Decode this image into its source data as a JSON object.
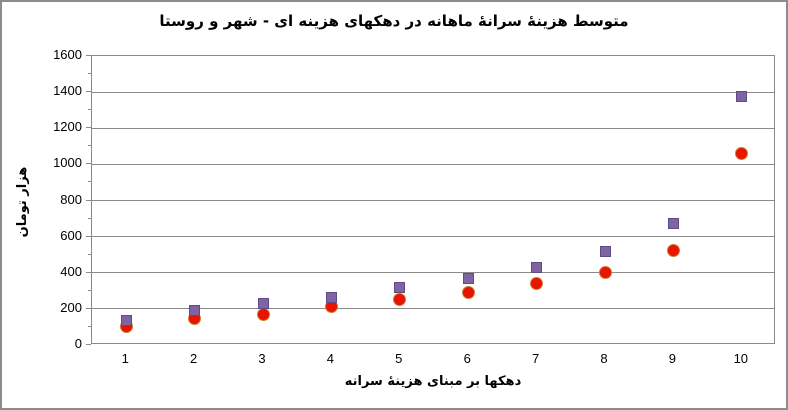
{
  "chart": {
    "title": "متوسط هزینۀ سرانۀ ماهانه در دهکهای هزینه ای - شهر و روستا",
    "x_axis_title": "دهکها بر مبنای هزینۀ سرانه",
    "y_axis_title": "هزار تومان"
  },
  "chart_data": {
    "type": "scatter",
    "title": "متوسط هزینۀ سرانۀ ماهانه در دهکهای هزینه ای - شهر و روستا",
    "xlabel": "دهکها بر مبنای هزینۀ سرانه",
    "ylabel": "هزار تومان",
    "xlim": [
      0.5,
      10.5
    ],
    "ylim": [
      0,
      1600
    ],
    "ytick_step": 200,
    "ytick_labels": [
      "0",
      "200",
      "400",
      "600",
      "800",
      "1000",
      "1200",
      "1400",
      "1600"
    ],
    "y_minor_step": 100,
    "xticks": [
      1,
      2,
      3,
      4,
      5,
      6,
      7,
      8,
      9,
      10
    ],
    "grid": "horizontal-major-only",
    "legend": "none",
    "x": [
      1,
      2,
      3,
      4,
      5,
      6,
      7,
      8,
      9,
      10
    ],
    "series": [
      {
        "name": "red-circle-series",
        "marker": "circle",
        "fill_color": "#e81400",
        "border_color": "#cf7d33",
        "values": [
          105,
          145,
          168,
          212,
          250,
          290,
          340,
          400,
          525,
          1060
        ]
      },
      {
        "name": "purple-square-series",
        "marker": "square",
        "fill_color": "#8064a2",
        "border_color": "#5f4b85",
        "values": [
          135,
          190,
          230,
          265,
          320,
          370,
          430,
          515,
          675,
          1375
        ]
      }
    ],
    "colors": {
      "gridline": "#8a8a8a",
      "plot_border": "#8a8a8a",
      "outer_border": "#8c8c8c",
      "text": "#000000"
    }
  }
}
